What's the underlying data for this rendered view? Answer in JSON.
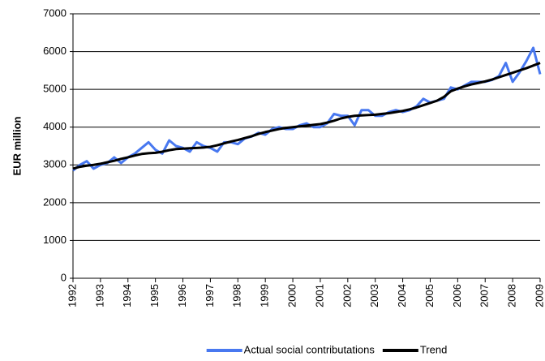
{
  "chart_data": {
    "type": "line",
    "y_label": "EUR million",
    "x": [
      1992,
      1992.25,
      1992.5,
      1992.75,
      1993,
      1993.25,
      1993.5,
      1993.75,
      1994,
      1994.25,
      1994.5,
      1994.75,
      1995,
      1995.25,
      1995.5,
      1995.75,
      1996,
      1996.25,
      1996.5,
      1996.75,
      1997,
      1997.25,
      1997.5,
      1997.75,
      1998,
      1998.25,
      1998.5,
      1998.75,
      1999,
      1999.25,
      1999.5,
      1999.75,
      2000,
      2000.25,
      2000.5,
      2000.75,
      2001,
      2001.25,
      2001.5,
      2001.75,
      2002,
      2002.25,
      2002.5,
      2002.75,
      2003,
      2003.25,
      2003.5,
      2003.75,
      2004,
      2004.25,
      2004.5,
      2004.75,
      2005,
      2005.25,
      2005.5,
      2005.75,
      2006,
      2006.25,
      2006.5,
      2006.75,
      2007,
      2007.25,
      2007.5,
      2007.75,
      2008,
      2008.25,
      2008.5,
      2008.75,
      2009
    ],
    "series": [
      {
        "name": "Actual social contributations",
        "color": "#4878f0",
        "values": [
          2850,
          3000,
          3100,
          2900,
          3000,
          3050,
          3200,
          3050,
          3200,
          3300,
          3450,
          3600,
          3400,
          3300,
          3650,
          3500,
          3450,
          3350,
          3600,
          3500,
          3450,
          3350,
          3600,
          3600,
          3550,
          3700,
          3750,
          3850,
          3800,
          3950,
          4000,
          3950,
          3950,
          4050,
          4100,
          4000,
          4000,
          4100,
          4350,
          4300,
          4300,
          4050,
          4450,
          4450,
          4300,
          4300,
          4400,
          4450,
          4400,
          4450,
          4550,
          4750,
          4650,
          4700,
          4750,
          5050,
          5000,
          5100,
          5200,
          5200,
          5200,
          5250,
          5350,
          5700,
          5200,
          5450,
          5750,
          6100,
          5400
        ]
      },
      {
        "name": "Trend",
        "color": "#000000",
        "values": [
          2900,
          2950,
          2980,
          3000,
          3030,
          3070,
          3110,
          3160,
          3200,
          3250,
          3290,
          3310,
          3320,
          3350,
          3390,
          3420,
          3430,
          3440,
          3450,
          3460,
          3480,
          3520,
          3570,
          3620,
          3660,
          3710,
          3760,
          3820,
          3870,
          3910,
          3950,
          3980,
          4000,
          4020,
          4040,
          4060,
          4080,
          4120,
          4170,
          4230,
          4270,
          4300,
          4310,
          4320,
          4330,
          4350,
          4370,
          4400,
          4430,
          4470,
          4520,
          4580,
          4640,
          4700,
          4800,
          4950,
          5020,
          5080,
          5130,
          5170,
          5210,
          5260,
          5320,
          5380,
          5440,
          5500,
          5560,
          5630,
          5700
        ]
      }
    ],
    "xlim": [
      1992,
      2009
    ],
    "xticks": [
      1992,
      1993,
      1994,
      1995,
      1996,
      1997,
      1998,
      1999,
      2000,
      2001,
      2002,
      2003,
      2004,
      2005,
      2006,
      2007,
      2008,
      2009
    ],
    "ylim": [
      0,
      7000
    ],
    "yticks": [
      0,
      1000,
      2000,
      3000,
      4000,
      5000,
      6000,
      7000
    ],
    "grid": true,
    "legend": "bottom"
  }
}
